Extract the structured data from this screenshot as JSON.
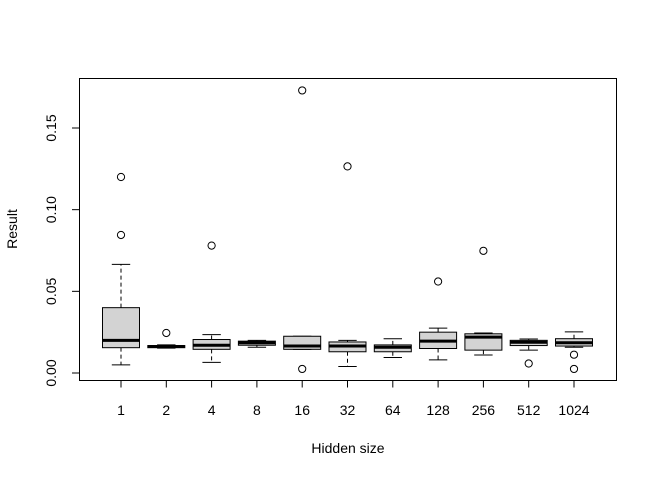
{
  "chart_data": {
    "type": "boxplot",
    "title": "",
    "xlabel": "Hidden size",
    "ylabel": "Result",
    "ylim": [
      0.0,
      0.178
    ],
    "y_ticks": [
      "0.00",
      "0.05",
      "0.10",
      "0.15"
    ],
    "y_tick_values": [
      0.0,
      0.05,
      0.1,
      0.15
    ],
    "grid": false,
    "legend": "none",
    "colors": {
      "box_fill": "#d3d3d3",
      "stroke": "#000000"
    },
    "categories": [
      "1",
      "2",
      "4",
      "8",
      "16",
      "32",
      "64",
      "128",
      "256",
      "512",
      "1024"
    ],
    "boxes": [
      {
        "whisker_low": 0.005,
        "q1": 0.0155,
        "median": 0.02,
        "q3": 0.04,
        "whisker_high": 0.0665,
        "outliers": [
          0.0845,
          0.12
        ]
      },
      {
        "whisker_low": 0.0152,
        "q1": 0.0155,
        "median": 0.0162,
        "q3": 0.0168,
        "whisker_high": 0.0172,
        "outliers": [
          0.0245
        ]
      },
      {
        "whisker_low": 0.0065,
        "q1": 0.0145,
        "median": 0.017,
        "q3": 0.0205,
        "whisker_high": 0.0235,
        "outliers": [
          0.078
        ]
      },
      {
        "whisker_low": 0.0158,
        "q1": 0.017,
        "median": 0.0185,
        "q3": 0.0195,
        "whisker_high": 0.02,
        "outliers": []
      },
      {
        "whisker_low": 0.0145,
        "q1": 0.0145,
        "median": 0.0165,
        "q3": 0.0225,
        "whisker_high": 0.0225,
        "outliers": [
          0.0025,
          0.173
        ]
      },
      {
        "whisker_low": 0.004,
        "q1": 0.013,
        "median": 0.0165,
        "q3": 0.019,
        "whisker_high": 0.02,
        "outliers": [
          0.1265
        ]
      },
      {
        "whisker_low": 0.0095,
        "q1": 0.013,
        "median": 0.0158,
        "q3": 0.0172,
        "whisker_high": 0.021,
        "outliers": []
      },
      {
        "whisker_low": 0.008,
        "q1": 0.015,
        "median": 0.0195,
        "q3": 0.025,
        "whisker_high": 0.0275,
        "outliers": [
          0.056
        ]
      },
      {
        "whisker_low": 0.011,
        "q1": 0.014,
        "median": 0.022,
        "q3": 0.024,
        "whisker_high": 0.0245,
        "outliers": [
          0.0748
        ]
      },
      {
        "whisker_low": 0.014,
        "q1": 0.0168,
        "median": 0.0188,
        "q3": 0.02,
        "whisker_high": 0.0208,
        "outliers": [
          0.0058
        ]
      },
      {
        "whisker_low": 0.0158,
        "q1": 0.0165,
        "median": 0.0185,
        "q3": 0.021,
        "whisker_high": 0.0252,
        "outliers": [
          0.0112,
          0.0025
        ]
      }
    ]
  }
}
